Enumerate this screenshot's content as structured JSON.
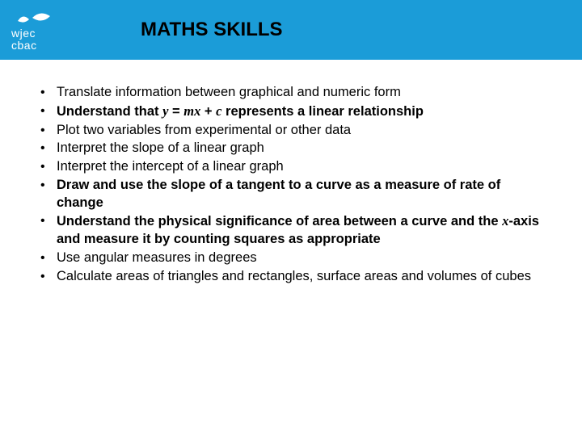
{
  "header": {
    "bg_color": "#1b9cd8",
    "logo_top": "wjec",
    "logo_bottom": "cbac",
    "logo_color": "#ffffff",
    "title": "MATHS SKILLS",
    "title_color": "#000000"
  },
  "content": {
    "text_color": "#000000",
    "bullets": [
      {
        "html": "Translate information between graphical and numeric form"
      },
      {
        "html": "<span class=\"b\">Understand that <span class=\"it\">y</span> = <span class=\"it\">mx</span> + <span class=\"it\">c</span> represents a linear relationship</span>"
      },
      {
        "html": "Plot two variables from experimental or other data"
      },
      {
        "html": "Interpret the slope of a linear graph"
      },
      {
        "html": "Interpret the intercept of a linear graph"
      },
      {
        "html": "<span class=\"b\">Draw and use the slope of a tangent to a curve as a measure of rate of change</span>"
      },
      {
        "html": "<span class=\"b\">Understand the physical significance of area between a curve and the <span class=\"it\">x</span>-axis and measure it by counting squares as appropriate</span>"
      },
      {
        "html": "Use angular measures in degrees"
      },
      {
        "html": "Calculate areas of triangles and rectangles, surface areas and volumes of cubes"
      }
    ]
  }
}
